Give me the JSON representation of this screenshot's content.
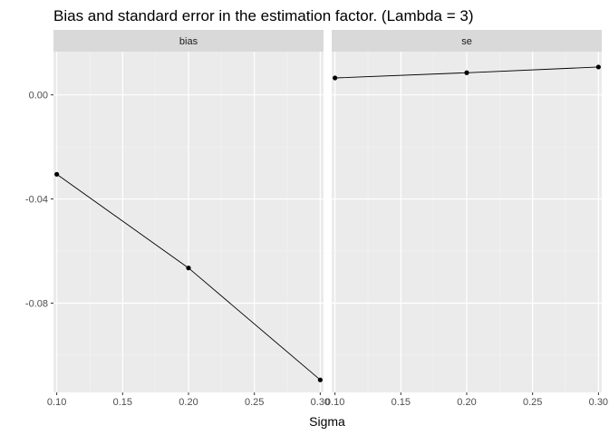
{
  "chart_data": {
    "type": "line",
    "title": "Bias and standard error in the estimation factor. (Lambda = 3)",
    "xlabel": "Sigma",
    "ylabel": "",
    "x": [
      0.1,
      0.2,
      0.3
    ],
    "xlim": [
      0.0975,
      0.3025
    ],
    "xticks": [
      "0.10",
      "0.15",
      "0.20",
      "0.25",
      "0.30"
    ],
    "ylim": [
      -0.1143,
      0.0166
    ],
    "yticks": [
      "0.00",
      "-0.04",
      "-0.08"
    ],
    "grid": true,
    "facets": [
      {
        "label": "bias",
        "values": [
          -0.0305,
          -0.0665,
          -0.1095
        ]
      },
      {
        "label": "se",
        "values": [
          0.0065,
          0.0085,
          0.0107
        ]
      }
    ]
  }
}
